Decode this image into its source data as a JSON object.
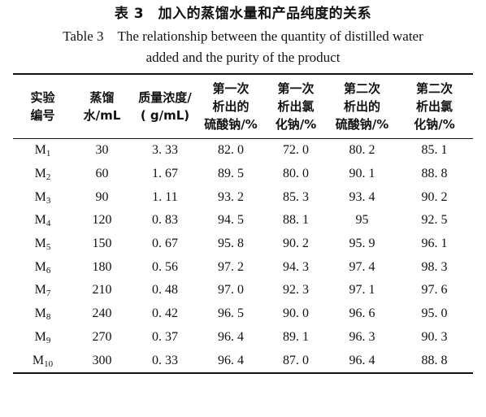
{
  "caption": {
    "cn": "表 3　加入的蒸馏水量和产品纯度的关系",
    "en_line1": "Table 3　The relationship between the quantity of distilled water",
    "en_line2": "added and the purity of the product"
  },
  "table": {
    "headers": [
      [
        "实验",
        "编号"
      ],
      [
        "蒸馏",
        "水/mL"
      ],
      [
        "质量浓度/",
        "( g/mL)"
      ],
      [
        "第一次",
        "析出的",
        "硫酸钠/%"
      ],
      [
        "第一次",
        "析出氯",
        "化钠/%"
      ],
      [
        "第二次",
        "析出的",
        "硫酸钠/%"
      ],
      [
        "第二次",
        "析出氯",
        "化钠/%"
      ]
    ],
    "rows": [
      {
        "code": "M",
        "sub": "1",
        "water": "30",
        "conc": "3. 33",
        "s1": "82. 0",
        "n1": "72. 0",
        "s2": "80. 2",
        "n2": "85. 1"
      },
      {
        "code": "M",
        "sub": "2",
        "water": "60",
        "conc": "1. 67",
        "s1": "89. 5",
        "n1": "80. 0",
        "s2": "90. 1",
        "n2": "88. 8"
      },
      {
        "code": "M",
        "sub": "3",
        "water": "90",
        "conc": "1. 11",
        "s1": "93. 2",
        "n1": "85. 3",
        "s2": "93. 4",
        "n2": "90. 2"
      },
      {
        "code": "M",
        "sub": "4",
        "water": "120",
        "conc": "0. 83",
        "s1": "94. 5",
        "n1": "88. 1",
        "s2": "95",
        "n2": "92. 5"
      },
      {
        "code": "M",
        "sub": "5",
        "water": "150",
        "conc": "0. 67",
        "s1": "95. 8",
        "n1": "90. 2",
        "s2": "95. 9",
        "n2": "96. 1"
      },
      {
        "code": "M",
        "sub": "6",
        "water": "180",
        "conc": "0. 56",
        "s1": "97. 2",
        "n1": "94. 3",
        "s2": "97. 4",
        "n2": "98. 3"
      },
      {
        "code": "M",
        "sub": "7",
        "water": "210",
        "conc": "0. 48",
        "s1": "97. 0",
        "n1": "92. 3",
        "s2": "97. 1",
        "n2": "97. 6"
      },
      {
        "code": "M",
        "sub": "8",
        "water": "240",
        "conc": "0. 42",
        "s1": "96. 5",
        "n1": "90. 0",
        "s2": "96. 6",
        "n2": "95. 0"
      },
      {
        "code": "M",
        "sub": "9",
        "water": "270",
        "conc": "0. 37",
        "s1": "96. 4",
        "n1": "89. 1",
        "s2": "96. 3",
        "n2": "90. 3"
      },
      {
        "code": "M",
        "sub": "10",
        "water": "300",
        "conc": "0. 33",
        "s1": "96. 4",
        "n1": "87. 0",
        "s2": "96. 4",
        "n2": "88. 8"
      }
    ]
  }
}
